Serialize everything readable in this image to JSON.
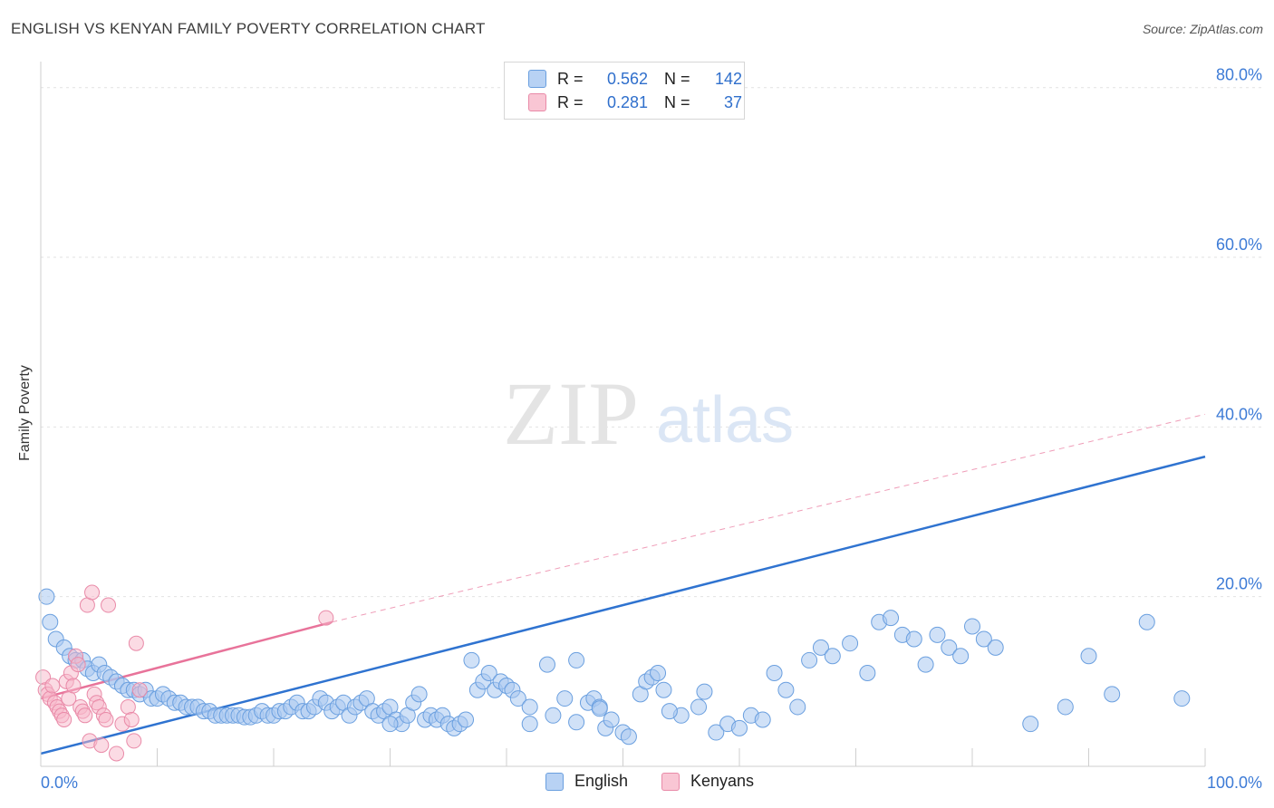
{
  "header": {
    "title": "ENGLISH VS KENYAN FAMILY POVERTY CORRELATION CHART",
    "source": "Source: ZipAtlas.com"
  },
  "watermark": {
    "zip": "ZIP",
    "atlas": "atlas"
  },
  "legend": {
    "rows": [
      {
        "r_label": "R =",
        "r_value": "0.562",
        "n_label": "N =",
        "n_value": "142"
      },
      {
        "r_label": "R =",
        "r_value": "0.281",
        "n_label": "N =",
        "n_value": "37"
      }
    ]
  },
  "bottom_legend": {
    "english": "English",
    "kenyans": "Kenyans"
  },
  "colors": {
    "english_fill": "#a9c8f0",
    "english_stroke": "#6a9fdf",
    "english_line": "#2f73d0",
    "kenyan_fill": "#f7b8ca",
    "kenyan_stroke": "#e98aa8",
    "kenyan_line": "#e8739a",
    "axis_text": "#3d7bd6",
    "grid": "#e2e2e2"
  },
  "chart_data": {
    "type": "scatter",
    "title": "ENGLISH VS KENYAN FAMILY POVERTY CORRELATION CHART",
    "xlabel": "",
    "ylabel": "Family Poverty",
    "xlim": [
      0,
      100
    ],
    "ylim": [
      0,
      82
    ],
    "x_tick_labels": [
      "0.0%",
      "100.0%"
    ],
    "y_ticks": [
      20,
      40,
      60,
      80
    ],
    "y_tick_labels": [
      "20.0%",
      "40.0%",
      "60.0%",
      "80.0%"
    ],
    "grid": true,
    "legend_position": "top-center",
    "series": [
      {
        "name": "English",
        "r": 0.562,
        "n": 142,
        "trend": {
          "x": [
            0,
            100
          ],
          "y": [
            1.5,
            36.5
          ]
        },
        "points": [
          [
            0.5,
            20
          ],
          [
            0.8,
            17
          ],
          [
            1.3,
            15
          ],
          [
            2,
            14
          ],
          [
            2.5,
            13
          ],
          [
            3,
            12.5
          ],
          [
            3.6,
            12.5
          ],
          [
            4,
            11.5
          ],
          [
            4.5,
            11
          ],
          [
            5,
            12
          ],
          [
            5.5,
            11
          ],
          [
            6,
            10.5
          ],
          [
            6.5,
            10
          ],
          [
            7,
            9.5
          ],
          [
            7.5,
            9
          ],
          [
            8,
            9
          ],
          [
            8.5,
            8.5
          ],
          [
            9,
            9
          ],
          [
            9.5,
            8
          ],
          [
            10,
            8
          ],
          [
            10.5,
            8.5
          ],
          [
            11,
            8
          ],
          [
            11.5,
            7.5
          ],
          [
            12,
            7.5
          ],
          [
            12.5,
            7
          ],
          [
            13,
            7
          ],
          [
            13.5,
            7
          ],
          [
            14,
            6.5
          ],
          [
            14.5,
            6.5
          ],
          [
            15,
            6
          ],
          [
            15.5,
            6
          ],
          [
            16,
            6
          ],
          [
            16.5,
            6
          ],
          [
            17,
            6
          ],
          [
            17.5,
            5.8
          ],
          [
            18,
            5.8
          ],
          [
            18.5,
            6
          ],
          [
            19,
            6.5
          ],
          [
            19.5,
            6
          ],
          [
            20,
            6
          ],
          [
            20.5,
            6.5
          ],
          [
            21,
            6.5
          ],
          [
            21.5,
            7
          ],
          [
            22,
            7.5
          ],
          [
            22.5,
            6.5
          ],
          [
            23,
            6.5
          ],
          [
            23.5,
            7
          ],
          [
            24,
            8
          ],
          [
            24.5,
            7.5
          ],
          [
            25,
            6.5
          ],
          [
            25.5,
            7
          ],
          [
            26,
            7.5
          ],
          [
            26.5,
            6
          ],
          [
            27,
            7
          ],
          [
            27.5,
            7.5
          ],
          [
            28,
            8
          ],
          [
            28.5,
            6.5
          ],
          [
            29,
            6
          ],
          [
            29.5,
            6.5
          ],
          [
            30,
            7
          ],
          [
            30.5,
            5.5
          ],
          [
            31,
            5
          ],
          [
            31.5,
            6
          ],
          [
            32,
            7.5
          ],
          [
            32.5,
            8.5
          ],
          [
            33,
            5.5
          ],
          [
            33.5,
            6
          ],
          [
            34,
            5.5
          ],
          [
            34.5,
            6
          ],
          [
            35,
            5
          ],
          [
            35.5,
            4.5
          ],
          [
            36,
            5
          ],
          [
            36.5,
            5.5
          ],
          [
            37,
            12.5
          ],
          [
            37.5,
            9
          ],
          [
            38,
            10
          ],
          [
            38.5,
            11
          ],
          [
            39,
            9
          ],
          [
            39.5,
            10
          ],
          [
            40,
            9.5
          ],
          [
            40.5,
            9
          ],
          [
            41,
            8
          ],
          [
            42,
            5
          ],
          [
            43.5,
            12
          ],
          [
            45,
            8
          ],
          [
            46,
            12.5
          ],
          [
            47,
            7.5
          ],
          [
            47.5,
            8
          ],
          [
            48,
            7
          ],
          [
            48.5,
            4.5
          ],
          [
            49,
            5.5
          ],
          [
            50,
            4
          ],
          [
            50.5,
            3.5
          ],
          [
            51.5,
            8.5
          ],
          [
            52,
            10
          ],
          [
            52.5,
            10.5
          ],
          [
            53,
            11
          ],
          [
            53.5,
            9
          ],
          [
            55,
            6
          ],
          [
            56.5,
            7
          ],
          [
            58,
            4
          ],
          [
            59,
            5
          ],
          [
            60,
            4.5
          ],
          [
            61,
            6
          ],
          [
            62,
            5.5
          ],
          [
            63,
            11
          ],
          [
            64,
            9
          ],
          [
            65,
            7
          ],
          [
            66,
            12.5
          ],
          [
            67,
            14
          ],
          [
            68,
            13
          ],
          [
            69.5,
            14.5
          ],
          [
            71,
            11
          ],
          [
            72,
            17
          ],
          [
            73,
            17.5
          ],
          [
            74,
            15.5
          ],
          [
            75,
            15
          ],
          [
            76,
            12
          ],
          [
            77,
            15.5
          ],
          [
            78,
            14
          ],
          [
            79,
            13
          ],
          [
            80,
            16.5
          ],
          [
            81,
            15
          ],
          [
            82,
            14
          ],
          [
            85,
            5
          ],
          [
            88,
            7
          ],
          [
            90,
            13
          ],
          [
            92,
            8.5
          ],
          [
            95,
            17
          ],
          [
            98,
            8
          ],
          [
            30,
            5
          ],
          [
            42,
            7
          ],
          [
            44,
            6
          ],
          [
            46,
            5.2
          ],
          [
            48,
            6.8
          ],
          [
            54,
            6.5
          ],
          [
            57,
            8.8
          ]
        ]
      },
      {
        "name": "Kenyans",
        "r": 0.281,
        "n": 37,
        "trend": {
          "x": [
            0,
            25
          ],
          "y": [
            8,
            17
          ]
        },
        "trend_extension": {
          "x": [
            25,
            100
          ],
          "y": [
            17,
            41.5
          ]
        },
        "points": [
          [
            0.2,
            10.5
          ],
          [
            0.4,
            9
          ],
          [
            0.6,
            8.5
          ],
          [
            0.8,
            8
          ],
          [
            1,
            9.5
          ],
          [
            1.2,
            7.5
          ],
          [
            1.4,
            7
          ],
          [
            1.6,
            6.5
          ],
          [
            1.8,
            6
          ],
          [
            2,
            5.5
          ],
          [
            2.2,
            10
          ],
          [
            2.4,
            8
          ],
          [
            2.6,
            11
          ],
          [
            2.8,
            9.5
          ],
          [
            3,
            13
          ],
          [
            3.2,
            12
          ],
          [
            3.4,
            7
          ],
          [
            3.6,
            6.5
          ],
          [
            3.8,
            6
          ],
          [
            4,
            19
          ],
          [
            4.2,
            3
          ],
          [
            4.4,
            20.5
          ],
          [
            4.6,
            8.5
          ],
          [
            4.8,
            7.5
          ],
          [
            5,
            7
          ],
          [
            5.2,
            2.5
          ],
          [
            5.4,
            6
          ],
          [
            5.6,
            5.5
          ],
          [
            5.8,
            19
          ],
          [
            6.5,
            1.5
          ],
          [
            7,
            5
          ],
          [
            7.5,
            7
          ],
          [
            7.8,
            5.5
          ],
          [
            8,
            3
          ],
          [
            8.2,
            14.5
          ],
          [
            8.5,
            9
          ],
          [
            24.5,
            17.5
          ]
        ]
      }
    ]
  }
}
